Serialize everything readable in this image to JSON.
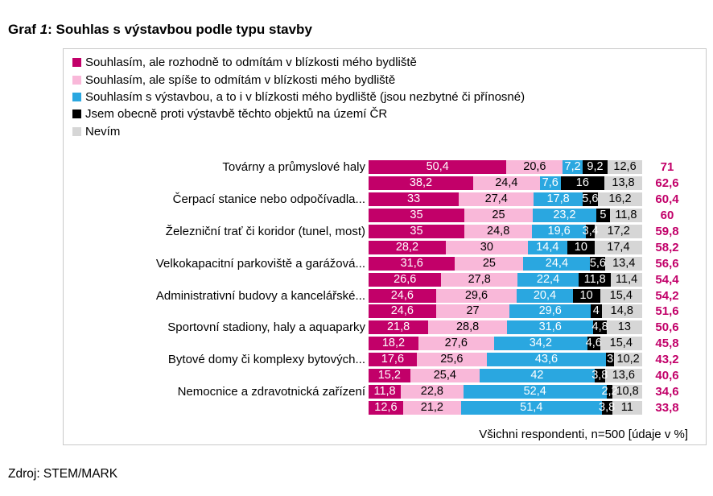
{
  "title": {
    "prefix": "Graf ",
    "number": "1",
    "rest": ": Souhlas s výstavbou podle typu stavby"
  },
  "footnote": "Všichni respondenti, n=500 [údaje v %]",
  "source": "Zdroj: STEM/MARK",
  "colors": {
    "strongly_reject_nearby": "#C20069",
    "rather_reject_nearby": "#F9B8D9",
    "agree_even_nearby": "#2AA7E0",
    "generally_against": "#000000",
    "dont_know": "#D6D6D6",
    "total_label": "#C20069",
    "box_border": "#C9C9C9"
  },
  "legend": [
    {
      "label": "Souhlasím, ale rozhodně to odmítám v blízkosti mého bydliště",
      "color": "#C20069"
    },
    {
      "label": "Souhlasím, ale spíše to odmítám v blízkosti mého bydliště",
      "color": "#F9B8D9"
    },
    {
      "label": "Souhlasím s výstavbou, a to i v blízkosti mého bydliště (jsou nezbytné či přínosné)",
      "color": "#2AA7E0"
    },
    {
      "label": "Jsem obecně proti výstavbě těchto objektů na území ČR",
      "color": "#000000"
    },
    {
      "label": "Nevím",
      "color": "#D6D6D6"
    }
  ],
  "chart_data": {
    "type": "bar",
    "orientation": "horizontal-stacked",
    "unit": "%",
    "xlim": [
      0,
      100
    ],
    "title": "Graf 1: Souhlas s výstavbou podle typu stavby",
    "legend_position": "top-left",
    "series": [
      {
        "name": "Souhlasím, ale rozhodně to odmítám v blízkosti mého bydliště",
        "color": "#C20069",
        "text_color": "#ffffff"
      },
      {
        "name": "Souhlasím, ale spíše to odmítám v blízkosti mého bydliště",
        "color": "#F9B8D9",
        "text_color": "#000000"
      },
      {
        "name": "Souhlasím s výstavbou, a to i v blízkosti mého bydliště (jsou nezbytné či přínosné)",
        "color": "#2AA7E0",
        "text_color": "#ffffff"
      },
      {
        "name": "Jsem obecně proti výstavbě těchto objektů na území ČR",
        "color": "#000000",
        "text_color": "#ffffff"
      },
      {
        "name": "Nevím",
        "color": "#D6D6D6",
        "text_color": "#000000"
      }
    ],
    "rows": [
      {
        "label": "Továrny a průmyslové haly",
        "values": [
          50.4,
          20.6,
          7.2,
          9.2,
          12.6
        ],
        "display": [
          "50,4",
          "20,6",
          "7,2",
          "9,2",
          "12,6"
        ],
        "total": 71,
        "total_display": "71"
      },
      {
        "label": "",
        "values": [
          38.2,
          24.4,
          7.6,
          16,
          13.8
        ],
        "display": [
          "38,2",
          "24,4",
          "7,6",
          "16",
          "13,8"
        ],
        "total": 62.6,
        "total_display": "62,6"
      },
      {
        "label": "Čerpací stanice nebo odpočívadla...",
        "values": [
          33,
          27.4,
          17.8,
          5.6,
          16.2
        ],
        "display": [
          "33",
          "27,4",
          "17,8",
          "5,6",
          "16,2"
        ],
        "total": 60.4,
        "total_display": "60,4"
      },
      {
        "label": "",
        "values": [
          35,
          25,
          23.2,
          5,
          11.8
        ],
        "display": [
          "35",
          "25",
          "23,2",
          "5",
          "11,8"
        ],
        "total": 60,
        "total_display": "60"
      },
      {
        "label": "Železniční trať či koridor (tunel, most)",
        "values": [
          35,
          24.8,
          19.6,
          3.4,
          17.2
        ],
        "display": [
          "35",
          "24,8",
          "19,6",
          "3,4",
          "17,2"
        ],
        "total": 59.8,
        "total_display": "59,8"
      },
      {
        "label": "",
        "values": [
          28.2,
          30,
          14.4,
          10,
          17.4
        ],
        "display": [
          "28,2",
          "30",
          "14,4",
          "10",
          "17,4"
        ],
        "total": 58.2,
        "total_display": "58,2"
      },
      {
        "label": "Velkokapacitní parkoviště a garážová...",
        "values": [
          31.6,
          25,
          24.4,
          5.6,
          13.4
        ],
        "display": [
          "31,6",
          "25",
          "24,4",
          "5,6",
          "13,4"
        ],
        "total": 56.6,
        "total_display": "56,6"
      },
      {
        "label": "",
        "values": [
          26.6,
          27.8,
          22.4,
          11.8,
          11.4
        ],
        "display": [
          "26,6",
          "27,8",
          "22,4",
          "11,8",
          "11,4"
        ],
        "total": 54.4,
        "total_display": "54,4"
      },
      {
        "label": "Administrativní budovy a kancelářské...",
        "values": [
          24.6,
          29.6,
          20.4,
          10,
          15.4
        ],
        "display": [
          "24,6",
          "29,6",
          "20,4",
          "10",
          "15,4"
        ],
        "total": 54.2,
        "total_display": "54,2"
      },
      {
        "label": "",
        "values": [
          24.6,
          27,
          29.6,
          4,
          14.8
        ],
        "display": [
          "24,6",
          "27",
          "29,6",
          "4",
          "14,8"
        ],
        "total": 51.6,
        "total_display": "51,6"
      },
      {
        "label": "Sportovní stadiony, haly a aquaparky",
        "values": [
          21.8,
          28.8,
          31.6,
          4.8,
          13
        ],
        "display": [
          "21,8",
          "28,8",
          "31,6",
          "4,8",
          "13"
        ],
        "total": 50.6,
        "total_display": "50,6"
      },
      {
        "label": "",
        "values": [
          18.2,
          27.6,
          34.2,
          4.6,
          15.4
        ],
        "display": [
          "18,2",
          "27,6",
          "34,2",
          "4,6",
          "15,4"
        ],
        "total": 45.8,
        "total_display": "45,8"
      },
      {
        "label": "Bytové domy či komplexy bytových...",
        "values": [
          17.6,
          25.6,
          43.6,
          3,
          10.2
        ],
        "display": [
          "17,6",
          "25,6",
          "43,6",
          "3",
          "10,2"
        ],
        "total": 43.2,
        "total_display": "43,2"
      },
      {
        "label": "",
        "values": [
          15.2,
          25.4,
          42,
          3.8,
          13.6
        ],
        "display": [
          "15,2",
          "25,4",
          "42",
          "3,8",
          "13,6"
        ],
        "total": 40.6,
        "total_display": "40,6"
      },
      {
        "label": "Nemocnice a zdravotnická zařízení",
        "values": [
          11.8,
          22.8,
          52.4,
          2.2,
          10.8
        ],
        "display": [
          "11,8",
          "22,8",
          "52,4",
          "2,2",
          "10,8"
        ],
        "total": 34.6,
        "total_display": "34,6"
      },
      {
        "label": "",
        "values": [
          12.6,
          21.2,
          51.4,
          3.8,
          11
        ],
        "display": [
          "12,6",
          "21,2",
          "51,4",
          "3,8",
          "11"
        ],
        "total": 33.8,
        "total_display": "33,8"
      }
    ]
  }
}
